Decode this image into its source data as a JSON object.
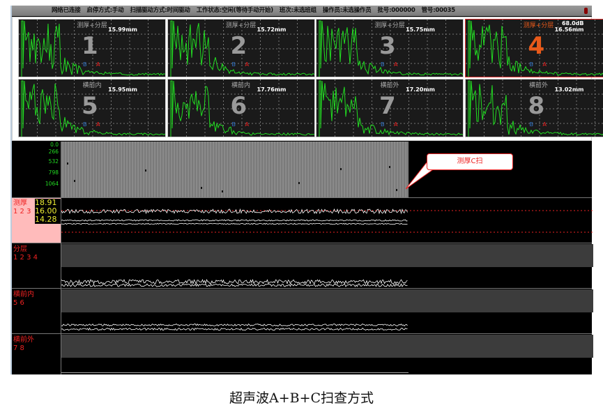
{
  "titlebar": {
    "items": [
      "网络已连接",
      "启停方式:手动",
      "扫描驱动方式:时间驱动",
      "工作状态:空闲(等待手动开始)",
      "班次:未选班组",
      "操作员:未选操作员",
      "批号:000000",
      "管号:00035"
    ]
  },
  "ascans": [
    {
      "num": "1",
      "header": "测厚+分层",
      "value": "15.99mm",
      "b": "B",
      "a": "A"
    },
    {
      "num": "2",
      "header": "测厚+分层",
      "value": "15.72mm",
      "b": "B",
      "a": "A"
    },
    {
      "num": "3",
      "header": "测厚+分层",
      "value": "15.75mm",
      "b": "B",
      "a": "A"
    },
    {
      "num": "4",
      "header": "测厚+分层",
      "gain": "68.0dB",
      "value": "16.56mm",
      "b": "B",
      "a": "A",
      "selected": true
    },
    {
      "num": "5",
      "header": "横前内",
      "value": "15.95mm",
      "b": "B",
      "a": "A"
    },
    {
      "num": "6",
      "header": "横前内",
      "value": "17.76mm",
      "b": "B",
      "a": "A"
    },
    {
      "num": "7",
      "header": "横前外",
      "value": "17.20mm",
      "b": "B",
      "a": "A"
    },
    {
      "num": "8",
      "header": "横前外",
      "value": "13.02mm",
      "b": "B",
      "a": "A"
    }
  ],
  "cscan": {
    "ticks": [
      "0.0",
      "266",
      "532",
      "798",
      "1064"
    ],
    "callout": "测厚C扫"
  },
  "thickness": {
    "label": "测厚",
    "channels": "1 2 3",
    "values": [
      "18.91",
      "16.00",
      "14.28"
    ]
  },
  "tracks": [
    {
      "label": "分层",
      "channels": "1 2 3 4"
    },
    {
      "label": "横前内",
      "channels": "5 6"
    },
    {
      "label": "横前外",
      "channels": "7 8"
    }
  ],
  "caption": "超声波A+B+C扫查方式",
  "colors": {
    "waveform": "#22dd22",
    "label": "#ee2222",
    "selected": "#e85a1a"
  }
}
